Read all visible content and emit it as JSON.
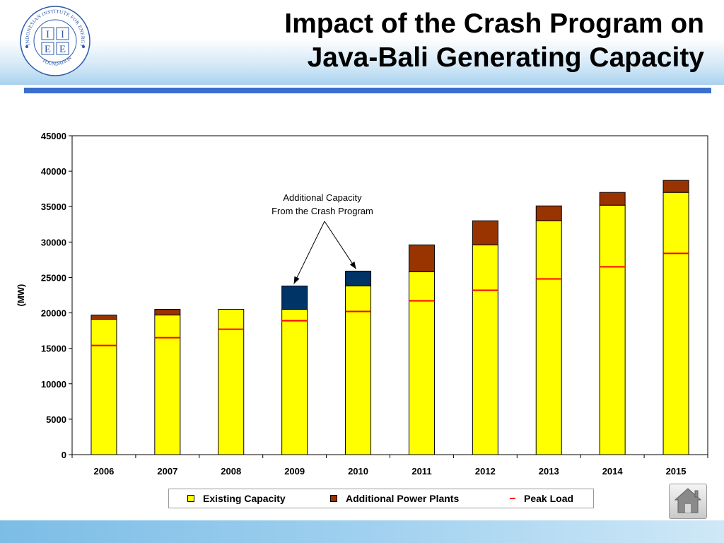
{
  "slide": {
    "title_line1": "Impact of the Crash Program on",
    "title_line2": "Java-Bali Generating Capacity",
    "logo_text_arc": "INDONESIAN INSTITUTE FOR ENERGY ECONOMICS",
    "logo_text_bottom": "FOUNDATION",
    "logo_letters": [
      "I",
      "I",
      "E",
      "E"
    ]
  },
  "colors": {
    "existing": "#ffff00",
    "additional": "#993300",
    "crash": "#003366",
    "peak": "#ff0000",
    "title_bar": "#3a6fcf"
  },
  "icons": {
    "home": "home-icon"
  },
  "chart_data": {
    "type": "bar",
    "stacked": true,
    "title": "",
    "xlabel": "",
    "ylabel": "(MW)",
    "ylim": [
      0,
      45000
    ],
    "yticks": [
      0,
      5000,
      10000,
      15000,
      20000,
      25000,
      30000,
      35000,
      40000,
      45000
    ],
    "categories": [
      "2006",
      "2007",
      "2008",
      "2009",
      "2010",
      "2011",
      "2012",
      "2013",
      "2014",
      "2015"
    ],
    "series": [
      {
        "name": "Existing Capacity",
        "values": [
          19100,
          19700,
          20500,
          20500,
          23800,
          25800,
          29600,
          33000,
          35200,
          37000
        ]
      },
      {
        "name": "Additional Power Plants",
        "values": [
          600,
          800,
          0,
          0,
          0,
          3800,
          3400,
          2100,
          1800,
          1700
        ]
      },
      {
        "name": "",
        "values": [
          0,
          0,
          0,
          3300,
          2100,
          0,
          0,
          0,
          0,
          0
        ]
      }
    ],
    "peak_load": {
      "name": "Peak Load",
      "values": [
        15400,
        16500,
        17700,
        18900,
        20200,
        21700,
        23200,
        24800,
        26500,
        28400
      ]
    },
    "annotation": {
      "line1": "Additional Capacity",
      "line2": "From the Crash Program",
      "targets": [
        "2009",
        "2010"
      ]
    },
    "legend_position": "bottom",
    "grid": false
  }
}
